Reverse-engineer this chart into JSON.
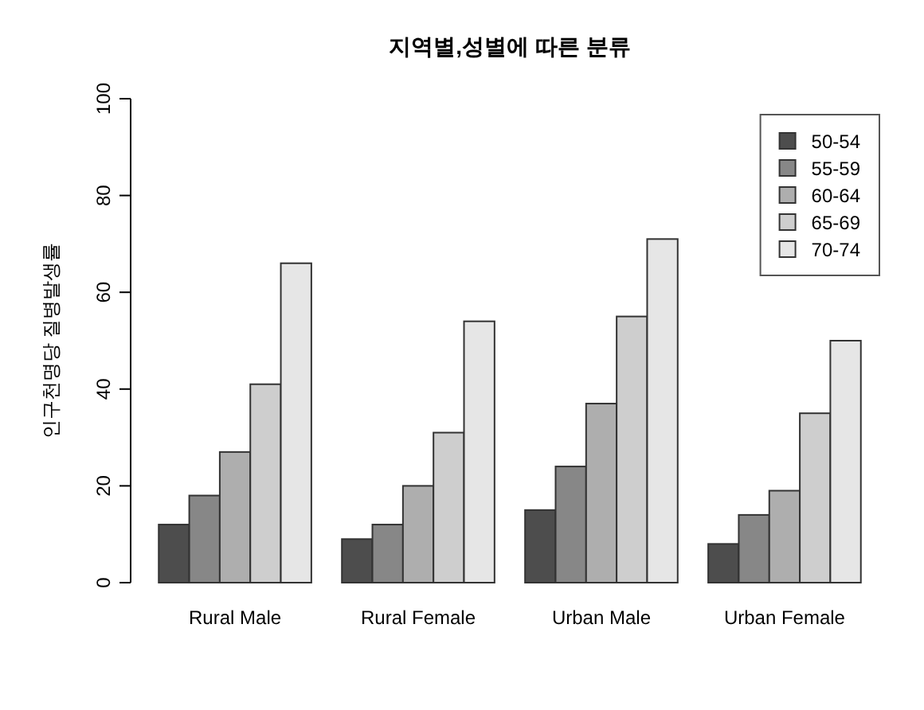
{
  "chart_data": {
    "type": "bar",
    "title": "지역별,성별에 따른 분류",
    "ylabel": "인구천명당 질병발생률",
    "categories": [
      "Rural Male",
      "Rural Female",
      "Urban Male",
      "Urban Female"
    ],
    "series": [
      {
        "name": "50-54",
        "color": "#4d4d4d",
        "values": [
          12,
          9,
          15,
          8
        ]
      },
      {
        "name": "55-59",
        "color": "#878787",
        "values": [
          18,
          12,
          24,
          14
        ]
      },
      {
        "name": "60-64",
        "color": "#aeaeae",
        "values": [
          27,
          20,
          37,
          19
        ]
      },
      {
        "name": "65-69",
        "color": "#cecece",
        "values": [
          41,
          31,
          55,
          35
        ]
      },
      {
        "name": "70-74",
        "color": "#e6e6e6",
        "values": [
          66,
          54,
          71,
          50
        ]
      }
    ],
    "ylim": [
      0,
      100
    ],
    "yticks": [
      0,
      20,
      40,
      60,
      80,
      100
    ],
    "legend": "top right"
  }
}
